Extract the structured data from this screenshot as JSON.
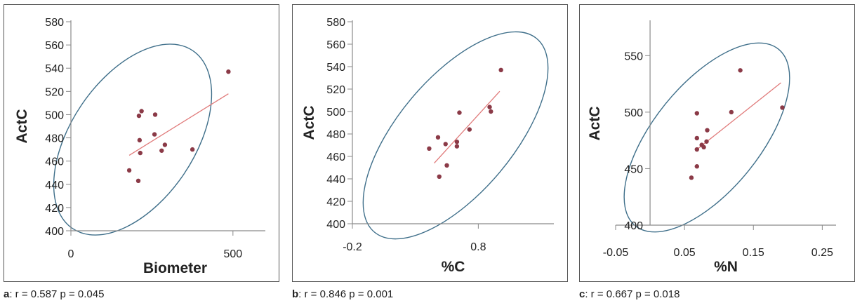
{
  "chart_data": [
    {
      "type": "scatter",
      "title": "",
      "xlabel": "Biometer",
      "ylabel": "ActC",
      "xlim": [
        0,
        600
      ],
      "ylim": [
        400,
        580
      ],
      "xticks": [
        0,
        500
      ],
      "yticks": [
        400,
        420,
        440,
        460,
        480,
        500,
        520,
        540,
        560,
        580
      ],
      "points": [
        {
          "x": 180,
          "y": 452
        },
        {
          "x": 208,
          "y": 443
        },
        {
          "x": 210,
          "y": 499
        },
        {
          "x": 218,
          "y": 503
        },
        {
          "x": 212,
          "y": 478
        },
        {
          "x": 214,
          "y": 467
        },
        {
          "x": 260,
          "y": 500
        },
        {
          "x": 258,
          "y": 483
        },
        {
          "x": 280,
          "y": 469
        },
        {
          "x": 290,
          "y": 474
        },
        {
          "x": 375,
          "y": 470
        },
        {
          "x": 486,
          "y": 537
        }
      ],
      "trendline": {
        "x": [
          180,
          486
        ],
        "y": [
          465,
          518
        ]
      },
      "caption": {
        "letter": "a",
        "text": ": r = 0.587 p = 0.045"
      }
    },
    {
      "type": "scatter",
      "title": "",
      "xlabel": "%C",
      "ylabel": "ActC",
      "xlim": [
        -0.2,
        1.4
      ],
      "ylim": [
        400,
        580
      ],
      "xticks": [
        -0.2,
        0.8
      ],
      "yticks": [
        400,
        420,
        440,
        460,
        480,
        500,
        520,
        540,
        560,
        580
      ],
      "points": [
        {
          "x": 0.41,
          "y": 467
        },
        {
          "x": 0.48,
          "y": 477
        },
        {
          "x": 0.49,
          "y": 442
        },
        {
          "x": 0.54,
          "y": 471
        },
        {
          "x": 0.55,
          "y": 452
        },
        {
          "x": 0.63,
          "y": 473
        },
        {
          "x": 0.63,
          "y": 469
        },
        {
          "x": 0.65,
          "y": 499
        },
        {
          "x": 0.73,
          "y": 484
        },
        {
          "x": 0.89,
          "y": 504
        },
        {
          "x": 0.9,
          "y": 500
        },
        {
          "x": 0.98,
          "y": 537
        }
      ],
      "trendline": {
        "x": [
          0.45,
          0.97
        ],
        "y": [
          454,
          518
        ]
      },
      "caption": {
        "letter": "b",
        "text": ": r = 0.846 p = 0.001"
      }
    },
    {
      "type": "scatter",
      "title": "",
      "xlabel": "%N",
      "ylabel": "ActC",
      "xlim": [
        -0.05,
        0.27
      ],
      "ylim": [
        400,
        580
      ],
      "xticks": [
        -0.05,
        0.05,
        0.15,
        0.25
      ],
      "xtick_labels": [
        "-0.05",
        "0.05",
        "0.15",
        "0.25"
      ],
      "yticks": [
        400,
        450,
        500,
        550
      ],
      "points": [
        {
          "x": 0.06,
          "y": 442
        },
        {
          "x": 0.068,
          "y": 452
        },
        {
          "x": 0.068,
          "y": 467
        },
        {
          "x": 0.068,
          "y": 477
        },
        {
          "x": 0.068,
          "y": 499
        },
        {
          "x": 0.075,
          "y": 471
        },
        {
          "x": 0.078,
          "y": 469
        },
        {
          "x": 0.082,
          "y": 474
        },
        {
          "x": 0.083,
          "y": 484
        },
        {
          "x": 0.118,
          "y": 500
        },
        {
          "x": 0.131,
          "y": 537
        },
        {
          "x": 0.192,
          "y": 504
        }
      ],
      "trendline": {
        "x": [
          0.066,
          0.19
        ],
        "y": [
          466,
          526
        ]
      },
      "caption": {
        "letter": "c",
        "text": ": r = 0.667 p = 0.018"
      }
    }
  ],
  "colors": {
    "points": "#8b3a47",
    "trendline": "#e07a7a",
    "ellipse": "#3f6f8a",
    "axis": "#8a8a8a",
    "text": "#222222"
  }
}
